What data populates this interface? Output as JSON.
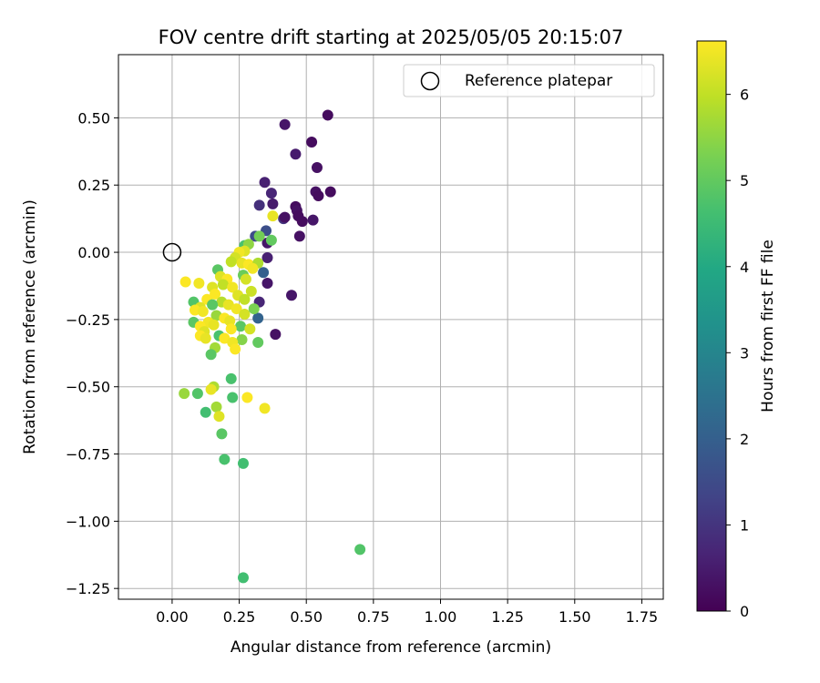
{
  "chart_data": {
    "type": "scatter",
    "title": "FOV centre drift starting at 2025/05/05 20:15:07",
    "xlabel": "Angular distance from reference (arcmin)",
    "ylabel": "Rotation from reference (arcmin)",
    "xlim": [
      -0.2,
      1.83
    ],
    "ylim": [
      -1.29,
      0.735
    ],
    "xticks": [
      0.0,
      0.25,
      0.5,
      0.75,
      1.0,
      1.25,
      1.5,
      1.75
    ],
    "xtick_labels": [
      "0.00",
      "0.25",
      "0.50",
      "0.75",
      "1.00",
      "1.25",
      "1.50",
      "1.75"
    ],
    "yticks": [
      0.5,
      0.25,
      0.0,
      -0.25,
      -0.5,
      -0.75,
      -1.0,
      -1.25
    ],
    "ytick_labels": [
      "0.50",
      "0.25",
      "0.00",
      "−0.25",
      "−0.50",
      "−0.75",
      "−1.00",
      "−1.25"
    ],
    "grid": true,
    "legend": {
      "placement": "top-right",
      "label": "Reference platepar"
    },
    "reference_point": {
      "x": 0.0,
      "y": 0.0
    },
    "colorbar": {
      "label": "Hours from first FF file",
      "colormap": "viridis",
      "range": [
        0,
        6.62
      ],
      "ticks": [
        0,
        1,
        2,
        3,
        4,
        5,
        6
      ],
      "tick_labels": [
        "0",
        "1",
        "2",
        "3",
        "4",
        "5",
        "6"
      ]
    },
    "points": [
      {
        "x": 0.58,
        "y": 0.51,
        "h": 0.2
      },
      {
        "x": 0.42,
        "y": 0.475,
        "h": 0.4
      },
      {
        "x": 0.52,
        "y": 0.41,
        "h": 0.2
      },
      {
        "x": 0.46,
        "y": 0.365,
        "h": 0.5
      },
      {
        "x": 0.54,
        "y": 0.315,
        "h": 0.3
      },
      {
        "x": 0.345,
        "y": 0.26,
        "h": 0.6
      },
      {
        "x": 0.37,
        "y": 0.22,
        "h": 0.7
      },
      {
        "x": 0.535,
        "y": 0.225,
        "h": 0.3
      },
      {
        "x": 0.545,
        "y": 0.21,
        "h": 0.2
      },
      {
        "x": 0.59,
        "y": 0.225,
        "h": 0.2
      },
      {
        "x": 0.325,
        "y": 0.175,
        "h": 0.9
      },
      {
        "x": 0.375,
        "y": 0.18,
        "h": 0.5
      },
      {
        "x": 0.46,
        "y": 0.17,
        "h": 0.2
      },
      {
        "x": 0.465,
        "y": 0.155,
        "h": 0.3
      },
      {
        "x": 0.47,
        "y": 0.135,
        "h": 0.2
      },
      {
        "x": 0.415,
        "y": 0.125,
        "h": 1.0
      },
      {
        "x": 0.42,
        "y": 0.13,
        "h": 0.3
      },
      {
        "x": 0.485,
        "y": 0.115,
        "h": 0.2
      },
      {
        "x": 0.525,
        "y": 0.12,
        "h": 0.4
      },
      {
        "x": 0.35,
        "y": 0.08,
        "h": 1.6
      },
      {
        "x": 0.31,
        "y": 0.06,
        "h": 1.5
      },
      {
        "x": 0.475,
        "y": 0.06,
        "h": 0.3
      },
      {
        "x": 0.355,
        "y": 0.035,
        "h": 0.4
      },
      {
        "x": 0.355,
        "y": -0.02,
        "h": 0.6
      },
      {
        "x": 0.34,
        "y": -0.075,
        "h": 2.0
      },
      {
        "x": 0.355,
        "y": -0.115,
        "h": 0.4
      },
      {
        "x": 0.445,
        "y": -0.16,
        "h": 0.4
      },
      {
        "x": 0.325,
        "y": -0.185,
        "h": 0.7
      },
      {
        "x": 0.32,
        "y": -0.245,
        "h": 2.1
      },
      {
        "x": 0.385,
        "y": -0.305,
        "h": 0.3
      },
      {
        "x": 0.375,
        "y": 0.135,
        "h": 6.4
      },
      {
        "x": 0.37,
        "y": 0.045,
        "h": 5.0
      },
      {
        "x": 0.325,
        "y": 0.06,
        "h": 5.2
      },
      {
        "x": 0.27,
        "y": 0.025,
        "h": 4.7
      },
      {
        "x": 0.285,
        "y": 0.03,
        "h": 5.5
      },
      {
        "x": 0.27,
        "y": 0.005,
        "h": 6.3
      },
      {
        "x": 0.25,
        "y": 0.0,
        "h": 6.5
      },
      {
        "x": 0.235,
        "y": -0.02,
        "h": 6.2
      },
      {
        "x": 0.22,
        "y": -0.035,
        "h": 6.0
      },
      {
        "x": 0.26,
        "y": -0.04,
        "h": 6.4
      },
      {
        "x": 0.285,
        "y": -0.045,
        "h": 6.6
      },
      {
        "x": 0.32,
        "y": -0.04,
        "h": 5.8
      },
      {
        "x": 0.3,
        "y": -0.06,
        "h": 6.5
      },
      {
        "x": 0.17,
        "y": -0.065,
        "h": 4.9
      },
      {
        "x": 0.18,
        "y": -0.09,
        "h": 6.3
      },
      {
        "x": 0.205,
        "y": -0.1,
        "h": 6.6
      },
      {
        "x": 0.265,
        "y": -0.085,
        "h": 5.1
      },
      {
        "x": 0.275,
        "y": -0.1,
        "h": 6.2
      },
      {
        "x": 0.05,
        "y": -0.11,
        "h": 6.6
      },
      {
        "x": 0.1,
        "y": -0.115,
        "h": 6.5
      },
      {
        "x": 0.15,
        "y": -0.13,
        "h": 6.3
      },
      {
        "x": 0.19,
        "y": -0.12,
        "h": 6.0
      },
      {
        "x": 0.225,
        "y": -0.13,
        "h": 6.5
      },
      {
        "x": 0.295,
        "y": -0.145,
        "h": 6.1
      },
      {
        "x": 0.16,
        "y": -0.155,
        "h": 6.6
      },
      {
        "x": 0.245,
        "y": -0.16,
        "h": 6.3
      },
      {
        "x": 0.27,
        "y": -0.175,
        "h": 6.0
      },
      {
        "x": 0.13,
        "y": -0.175,
        "h": 6.6
      },
      {
        "x": 0.185,
        "y": -0.185,
        "h": 5.9
      },
      {
        "x": 0.08,
        "y": -0.185,
        "h": 4.8
      },
      {
        "x": 0.21,
        "y": -0.195,
        "h": 6.4
      },
      {
        "x": 0.15,
        "y": -0.195,
        "h": 4.9
      },
      {
        "x": 0.105,
        "y": -0.205,
        "h": 6.3
      },
      {
        "x": 0.085,
        "y": -0.215,
        "h": 6.6
      },
      {
        "x": 0.115,
        "y": -0.22,
        "h": 6.5
      },
      {
        "x": 0.24,
        "y": -0.21,
        "h": 6.5
      },
      {
        "x": 0.27,
        "y": -0.23,
        "h": 6.2
      },
      {
        "x": 0.305,
        "y": -0.21,
        "h": 5.3
      },
      {
        "x": 0.165,
        "y": -0.235,
        "h": 5.6
      },
      {
        "x": 0.195,
        "y": -0.245,
        "h": 6.6
      },
      {
        "x": 0.215,
        "y": -0.255,
        "h": 6.4
      },
      {
        "x": 0.08,
        "y": -0.26,
        "h": 4.9
      },
      {
        "x": 0.135,
        "y": -0.26,
        "h": 6.5
      },
      {
        "x": 0.155,
        "y": -0.27,
        "h": 6.4
      },
      {
        "x": 0.105,
        "y": -0.275,
        "h": 6.6
      },
      {
        "x": 0.255,
        "y": -0.275,
        "h": 4.9
      },
      {
        "x": 0.29,
        "y": -0.285,
        "h": 6.2
      },
      {
        "x": 0.22,
        "y": -0.285,
        "h": 6.6
      },
      {
        "x": 0.12,
        "y": -0.295,
        "h": 6.3
      },
      {
        "x": 0.175,
        "y": -0.31,
        "h": 4.7
      },
      {
        "x": 0.105,
        "y": -0.31,
        "h": 6.6
      },
      {
        "x": 0.125,
        "y": -0.32,
        "h": 6.4
      },
      {
        "x": 0.195,
        "y": -0.32,
        "h": 6.6
      },
      {
        "x": 0.26,
        "y": -0.325,
        "h": 5.4
      },
      {
        "x": 0.225,
        "y": -0.335,
        "h": 6.5
      },
      {
        "x": 0.32,
        "y": -0.335,
        "h": 5.0
      },
      {
        "x": 0.16,
        "y": -0.355,
        "h": 5.7
      },
      {
        "x": 0.235,
        "y": -0.36,
        "h": 6.6
      },
      {
        "x": 0.145,
        "y": -0.38,
        "h": 4.9
      },
      {
        "x": 0.22,
        "y": -0.47,
        "h": 4.7
      },
      {
        "x": 0.155,
        "y": -0.5,
        "h": 5.8
      },
      {
        "x": 0.145,
        "y": -0.51,
        "h": 6.4
      },
      {
        "x": 0.045,
        "y": -0.525,
        "h": 5.6
      },
      {
        "x": 0.095,
        "y": -0.525,
        "h": 4.8
      },
      {
        "x": 0.225,
        "y": -0.54,
        "h": 4.7
      },
      {
        "x": 0.28,
        "y": -0.54,
        "h": 6.6
      },
      {
        "x": 0.165,
        "y": -0.575,
        "h": 5.7
      },
      {
        "x": 0.345,
        "y": -0.58,
        "h": 6.5
      },
      {
        "x": 0.125,
        "y": -0.595,
        "h": 4.6
      },
      {
        "x": 0.175,
        "y": -0.61,
        "h": 6.3
      },
      {
        "x": 0.185,
        "y": -0.675,
        "h": 4.9
      },
      {
        "x": 0.195,
        "y": -0.77,
        "h": 4.7
      },
      {
        "x": 0.265,
        "y": -0.785,
        "h": 4.6
      },
      {
        "x": 0.7,
        "y": -1.105,
        "h": 4.8
      },
      {
        "x": 0.265,
        "y": -1.21,
        "h": 4.6
      }
    ]
  }
}
